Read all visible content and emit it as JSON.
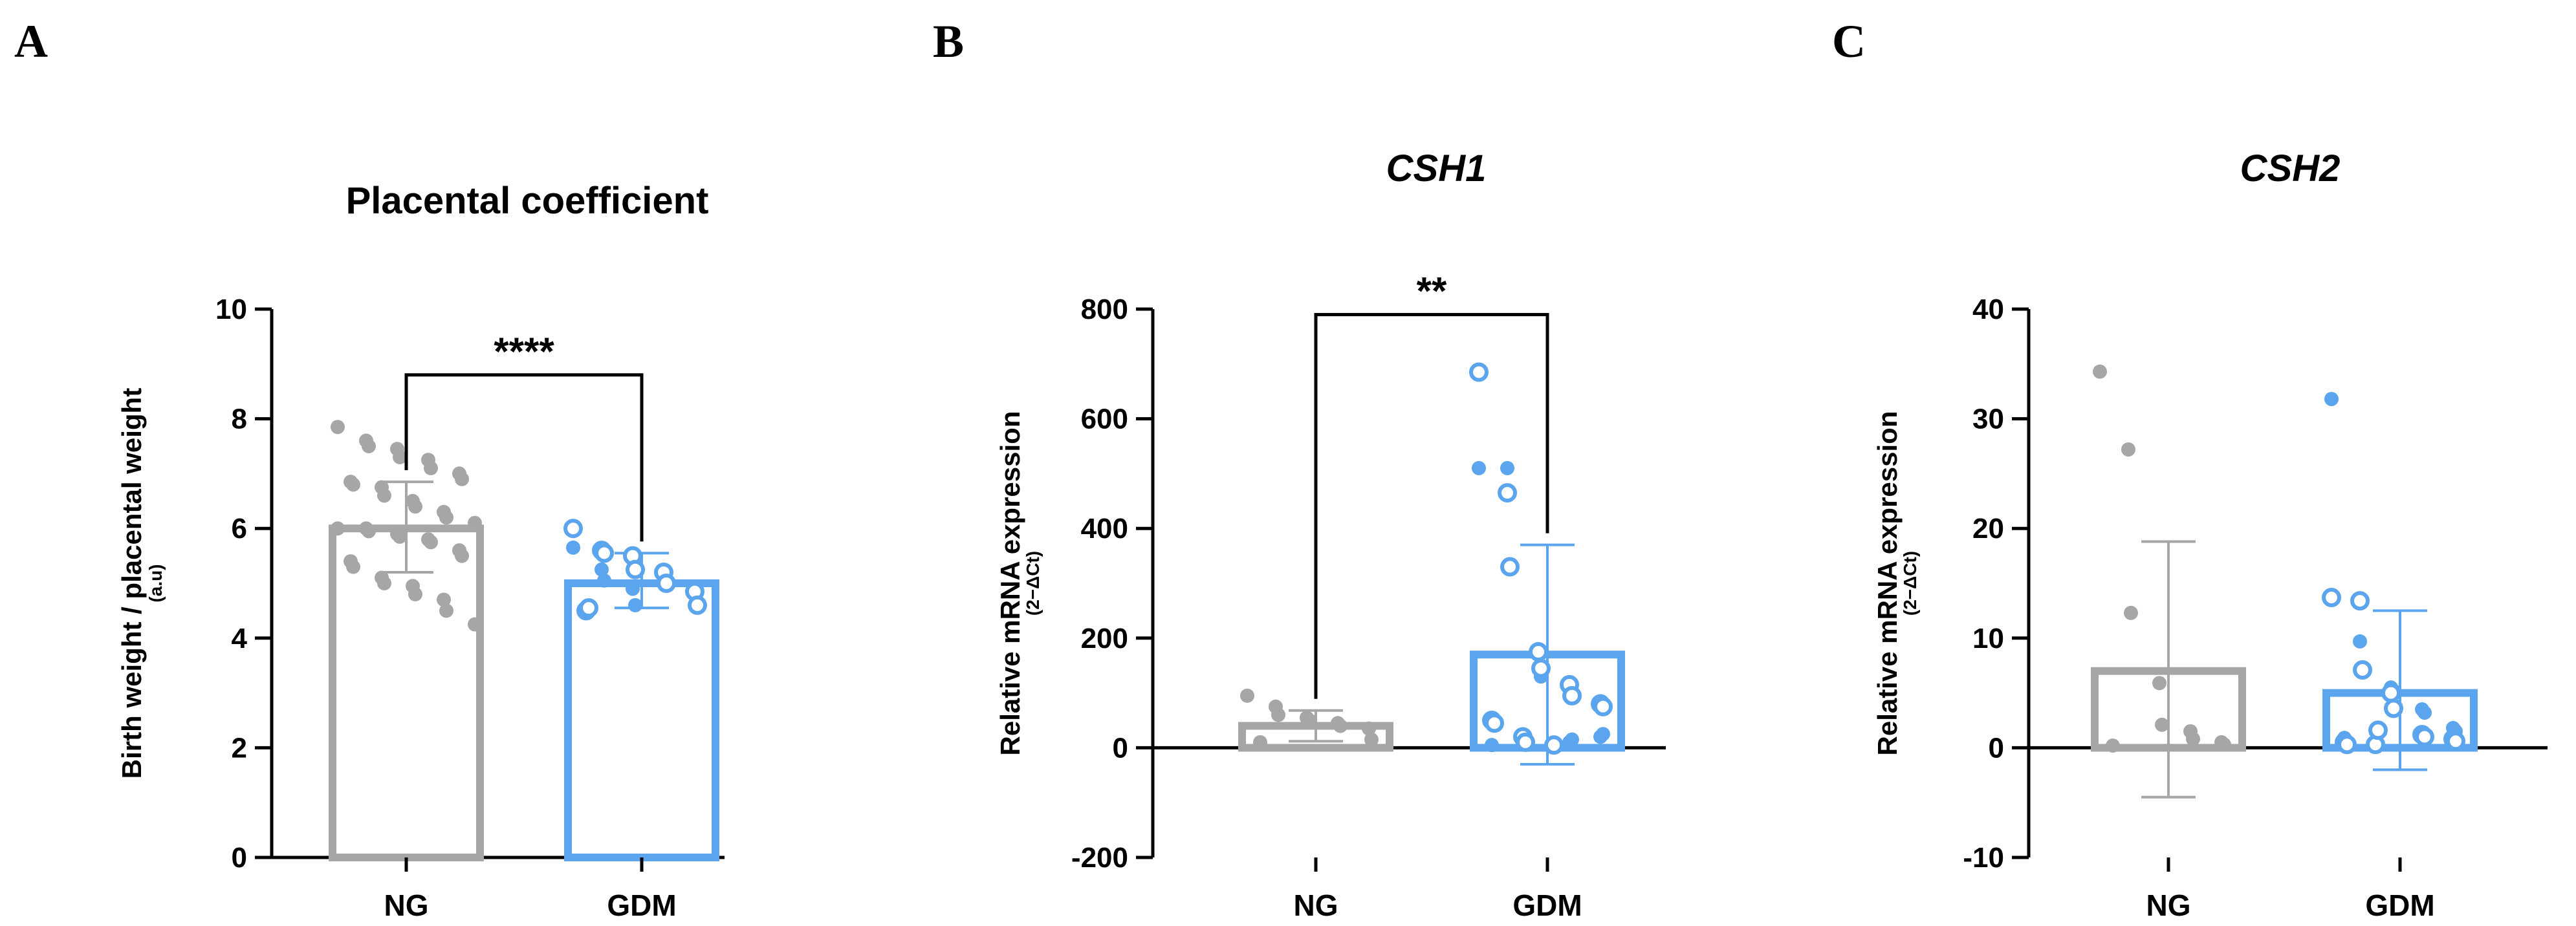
{
  "colors": {
    "ng": "#a6a6a6",
    "gdm": "#5aa5ee",
    "axis": "#000000"
  },
  "chart_data": [
    {
      "type": "bar",
      "panel": "A",
      "title": "Placental coefficient",
      "title_italic": false,
      "ylabel": "Birth weight / placental weight",
      "ylabel_sub": "(a.u)",
      "ylim": [
        0,
        10
      ],
      "yticks": [
        0,
        2,
        4,
        6,
        8,
        10
      ],
      "categories": [
        "NG",
        "GDM"
      ],
      "bars": [
        {
          "name": "NG",
          "mean": 6.0,
          "sd_low": 5.2,
          "sd_high": 6.85
        },
        {
          "name": "GDM",
          "mean": 5.0,
          "sd_low": 4.55,
          "sd_high": 5.55
        }
      ],
      "points": [
        {
          "group": "NG",
          "style": "filled",
          "values": [
            7.85,
            7.6,
            7.5,
            7.45,
            7.3,
            7.25,
            7.1,
            7.0,
            6.9,
            6.85,
            6.8,
            6.75,
            6.6,
            6.5,
            6.4,
            6.3,
            6.2,
            6.1,
            6.0,
            6.0,
            5.95,
            5.9,
            5.85,
            5.8,
            5.75,
            5.6,
            5.5,
            5.4,
            5.3,
            5.1,
            5.0,
            4.95,
            4.8,
            4.7,
            4.5,
            4.25
          ]
        },
        {
          "group": "GDM",
          "style": "filled",
          "values": [
            5.65,
            5.25,
            5.05,
            4.9,
            4.6
          ]
        },
        {
          "group": "GDM",
          "style": "open",
          "values": [
            6.0,
            5.6,
            5.55,
            5.5,
            5.25,
            5.2,
            5.0,
            4.85,
            4.6,
            4.5,
            4.55
          ]
        }
      ],
      "significance": {
        "from": "NG",
        "to": "GDM",
        "label": "****",
        "y": 8.8
      }
    },
    {
      "type": "bar",
      "panel": "B",
      "title": "CSH1",
      "title_italic": true,
      "ylabel": "Relative mRNA expression",
      "ylabel_sub": "(2−ΔCt)",
      "ylim": [
        -200,
        800
      ],
      "yticks": [
        -200,
        0,
        200,
        400,
        600,
        800
      ],
      "categories": [
        "NG",
        "GDM"
      ],
      "bars": [
        {
          "name": "NG",
          "mean": 40,
          "sd_low": 12,
          "sd_high": 68
        },
        {
          "name": "GDM",
          "mean": 170,
          "sd_low": -30,
          "sd_high": 370
        }
      ],
      "points": [
        {
          "group": "NG",
          "style": "filled",
          "values": [
            95,
            75,
            60,
            55,
            50,
            45,
            40,
            35,
            15,
            10
          ]
        },
        {
          "group": "GDM",
          "style": "filled",
          "values": [
            510,
            510,
            330,
            180,
            130,
            10,
            15,
            20,
            25,
            5
          ]
        },
        {
          "group": "GDM",
          "style": "open",
          "values": [
            685,
            465,
            330,
            175,
            145,
            115,
            95,
            80,
            75,
            50,
            45,
            20,
            10,
            5
          ]
        }
      ],
      "significance": {
        "from": "NG",
        "to": "GDM",
        "label": "**",
        "y": 790
      }
    },
    {
      "type": "bar",
      "panel": "C",
      "title": "CSH2",
      "title_italic": true,
      "ylabel": "Relative mRNA expression",
      "ylabel_sub": "(2−ΔCt)",
      "ylim": [
        -10,
        40
      ],
      "yticks": [
        -10,
        0,
        10,
        20,
        30,
        40
      ],
      "categories": [
        "NG",
        "GDM"
      ],
      "bars": [
        {
          "name": "NG",
          "mean": 7.0,
          "sd_low": -4.5,
          "sd_high": 18.8
        },
        {
          "name": "GDM",
          "mean": 5.0,
          "sd_low": -2.0,
          "sd_high": 12.5
        }
      ],
      "points": [
        {
          "group": "NG",
          "style": "filled",
          "values": [
            34.3,
            27.2,
            12.3,
            5.9,
            2.1,
            1.5,
            0.8,
            0.5,
            0.3,
            0.2
          ]
        },
        {
          "group": "GDM",
          "style": "filled",
          "values": [
            31.8,
            9.7,
            7.2,
            5.5,
            5.2,
            3.5,
            3.2,
            1.8,
            1.5,
            0.9,
            0.6,
            0.3,
            0.2
          ]
        },
        {
          "group": "GDM",
          "style": "open",
          "values": [
            13.7,
            13.4,
            7.1,
            5.0,
            3.6,
            1.2,
            1.0,
            0.8,
            0.6,
            0.5,
            0.3,
            0.3,
            1.6
          ]
        }
      ],
      "significance": null
    }
  ]
}
